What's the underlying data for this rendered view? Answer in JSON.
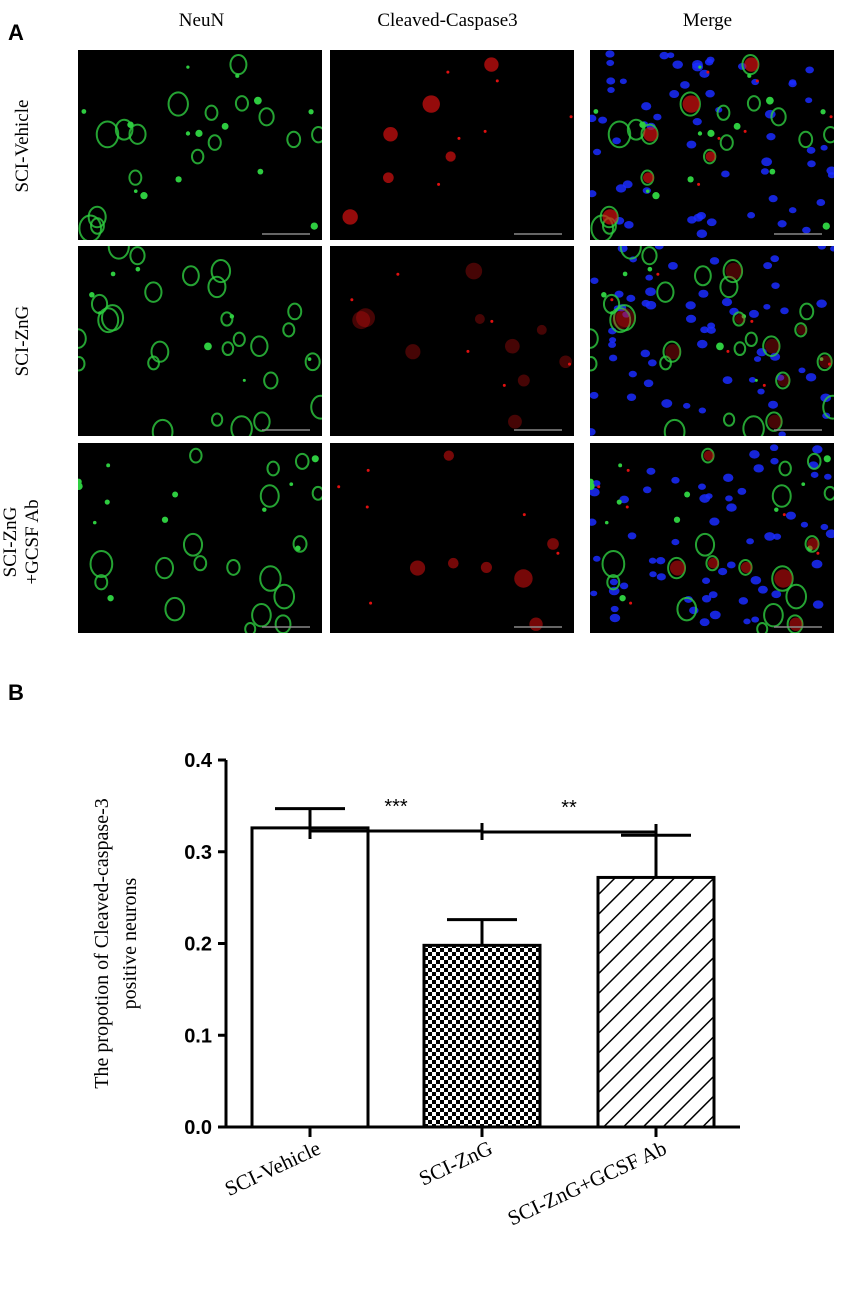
{
  "panel_a": {
    "letter": "A",
    "columns": [
      "NeuN",
      "Cleaved-Caspase3",
      "Merge"
    ],
    "rows": [
      {
        "label_lines": [
          "SCI-Vehicle"
        ]
      },
      {
        "label_lines": [
          "SCI-ZnG"
        ]
      },
      {
        "label_lines": [
          "SCI-ZnG",
          "+GCSF Ab"
        ]
      }
    ],
    "channel_colors": {
      "neun": "#2ecc40",
      "caspase": "#e01010",
      "dapi": "#1a2cff",
      "background": "#000000"
    }
  },
  "panel_b": {
    "letter": "B"
  },
  "chart_data": {
    "type": "bar",
    "categories": [
      "SCI-Vehicle",
      "SCI-ZnG",
      "SCI-ZnG+GCSF Ab"
    ],
    "values": [
      0.326,
      0.198,
      0.272
    ],
    "errors": [
      0.021,
      0.028,
      0.046
    ],
    "fill_patterns": [
      "none",
      "checkerboard",
      "diagonal-hatch"
    ],
    "ylabel_lines": [
      "The propotion of Cleaved-caspase-3",
      "positive neurons"
    ],
    "xlabel": "",
    "ylim": [
      0.0,
      0.4
    ],
    "yticks": [
      "0.0",
      "0.1",
      "0.2",
      "0.3",
      "0.4"
    ],
    "yticks_values": [
      0.0,
      0.1,
      0.2,
      0.3,
      0.4
    ],
    "grid": false,
    "significance": [
      {
        "from": 0,
        "to": 1,
        "label": "***"
      },
      {
        "from": 1,
        "to": 2,
        "label": "**"
      }
    ]
  }
}
